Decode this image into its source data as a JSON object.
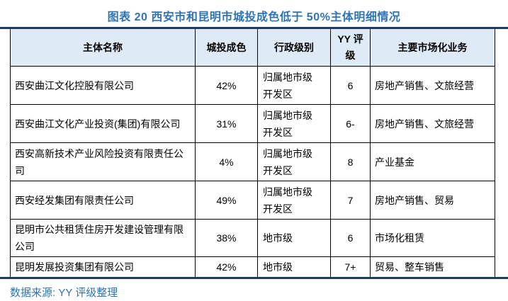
{
  "title": "图表 20 西安市和昆明市城投成色低于 50%主体明细情况",
  "colors": {
    "accent_blue": "#2E74B5",
    "rule_navy": "#1F3864",
    "header_fill": "#DEEAF6",
    "body_text": "#000000"
  },
  "table": {
    "headers": [
      "主体名称",
      "城投成色",
      "行政级别",
      "YY 评级",
      "主要市场化业务"
    ],
    "rows": [
      [
        "西安曲江文化控股有限公司",
        "42%",
        "归属地市级开发区",
        "6",
        "房地产销售、文旅经营"
      ],
      [
        "西安曲江文化产业投资(集团)有限公司",
        "31%",
        "归属地市级开发区",
        "6-",
        "房地产销售、文旅经营"
      ],
      [
        "西安高新技术产业风险投资有限责任公司",
        "4%",
        "归属地市级开发区",
        "8",
        "产业基金"
      ],
      [
        "西安经发集团有限责任公司",
        "49%",
        "归属地市级开发区",
        "7",
        "房地产销售、贸易"
      ],
      [
        "昆明市公共租赁住房开发建设管理有限公司",
        "38%",
        "地市级",
        "6",
        "市场化租赁"
      ],
      [
        "昆明发展投资集团有限公司",
        "42%",
        "地市级",
        "7+",
        "贸易、整车销售"
      ]
    ]
  },
  "footer": {
    "source_label": "数据来源: YY 评级整理"
  }
}
